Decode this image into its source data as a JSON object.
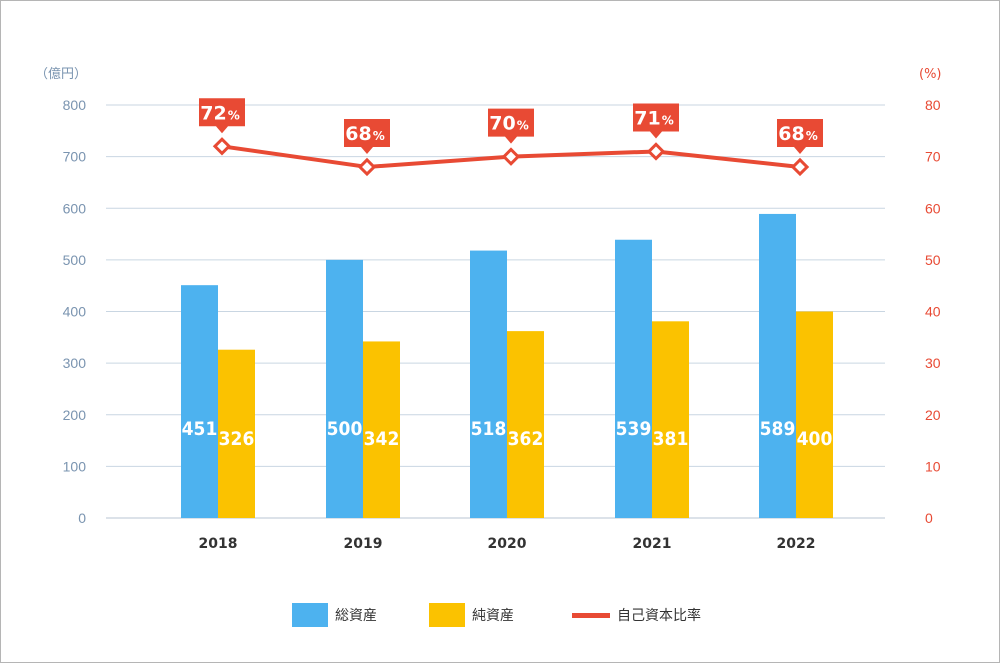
{
  "chart_data": {
    "type": "bar",
    "categories": [
      "2018",
      "2019",
      "2020",
      "2021",
      "2022"
    ],
    "series": [
      {
        "name": "総資産",
        "kind": "bar",
        "axis": "left",
        "color": "#4db2ef",
        "values": [
          451,
          500,
          518,
          539,
          589
        ]
      },
      {
        "name": "純資産",
        "kind": "bar",
        "axis": "left",
        "color": "#fbc200",
        "values": [
          326,
          342,
          362,
          381,
          400
        ]
      },
      {
        "name": "自己資本比率",
        "kind": "line",
        "axis": "right",
        "color": "#e84a34",
        "values": [
          72,
          68,
          70,
          71,
          68
        ],
        "value_labels": [
          "72",
          "68",
          "70",
          "71",
          "68"
        ],
        "value_suffix": "%"
      }
    ],
    "y_left": {
      "unit_label": "（億円）",
      "ylim": [
        0,
        800
      ],
      "ticks": [
        "0",
        "100",
        "200",
        "300",
        "400",
        "500",
        "600",
        "700",
        "800"
      ]
    },
    "y_right": {
      "unit_label": "(%)",
      "ylim": [
        0,
        80
      ],
      "ticks": [
        "0",
        "10",
        "20",
        "30",
        "40",
        "50",
        "60",
        "70",
        "80"
      ]
    },
    "grid": true,
    "legend_position": "bottom-center"
  }
}
